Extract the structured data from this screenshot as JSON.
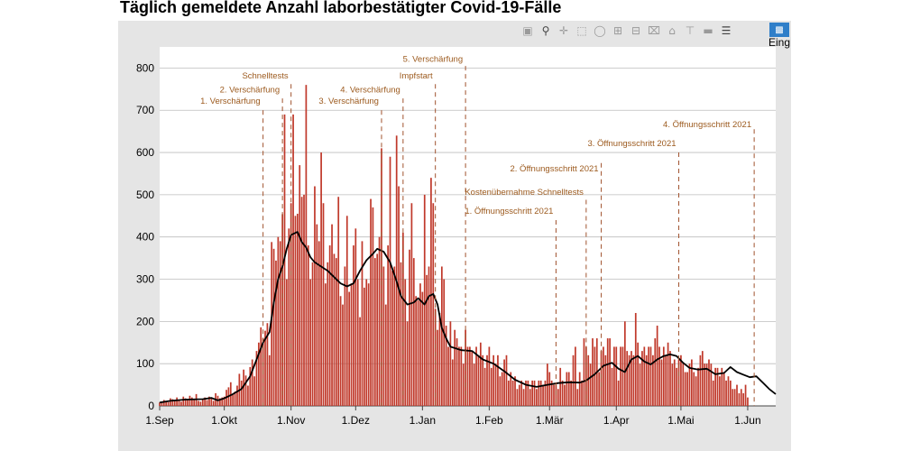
{
  "title": "Täglich gemeldete Anzahl laborbestätigter Covid-19-Fälle",
  "toolbar": {
    "icons": [
      "camera-icon",
      "zoom-icon",
      "pan-icon",
      "box-select-icon",
      "lasso-icon",
      "zoom-in-icon",
      "zoom-out-icon",
      "autoscale-icon",
      "home-icon",
      "spike-lines-icon",
      "hover-closest-icon",
      "hover-compare-icon"
    ],
    "legend_label": "Eing"
  },
  "chart_data": {
    "type": "bar",
    "title": "Täglich gemeldete Anzahl laborbestätigter Covid-19-Fälle",
    "x_start": "2020-09-01",
    "x_end": "2021-06-13",
    "ylim": [
      0,
      850
    ],
    "y_ticks": [
      0,
      100,
      200,
      300,
      400,
      500,
      600,
      700,
      800
    ],
    "x_ticks": [
      {
        "day": 0,
        "label": "1.Sep"
      },
      {
        "day": 30,
        "label": "1.Okt"
      },
      {
        "day": 61,
        "label": "1.Nov"
      },
      {
        "day": 91,
        "label": "1.Dez"
      },
      {
        "day": 122,
        "label": "1.Jan"
      },
      {
        "day": 153,
        "label": "1.Feb"
      },
      {
        "day": 181,
        "label": "1.Mär"
      },
      {
        "day": 212,
        "label": "1.Apr"
      },
      {
        "day": 242,
        "label": "1.Mai"
      },
      {
        "day": 273,
        "label": "1.Jun"
      }
    ],
    "grid": true,
    "bar_color": "#c0392b",
    "line_color": "#000000",
    "annotation_color": "#a0522d",
    "daily_cases": [
      8,
      10,
      14,
      12,
      9,
      18,
      16,
      12,
      20,
      14,
      10,
      22,
      18,
      15,
      24,
      20,
      16,
      28,
      12,
      10,
      16,
      20,
      14,
      22,
      18,
      12,
      30,
      24,
      18,
      20,
      22,
      38,
      44,
      56,
      28,
      34,
      48,
      76,
      60,
      86,
      72,
      48,
      92,
      110,
      70,
      130,
      150,
      186,
      160,
      178,
      196,
      120,
      388,
      372,
      344,
      400,
      390,
      454,
      690,
      300,
      420,
      480,
      690,
      450,
      455,
      570,
      495,
      500,
      760,
      380,
      300,
      340,
      520,
      430,
      390,
      600,
      480,
      290,
      340,
      380,
      430,
      360,
      350,
      495,
      260,
      240,
      330,
      450,
      270,
      290,
      380,
      420,
      300,
      210,
      390,
      280,
      300,
      290,
      490,
      470,
      350,
      360,
      400,
      610,
      330,
      240,
      380,
      590,
      320,
      330,
      640,
      520,
      340,
      410,
      300,
      200,
      370,
      480,
      350,
      260,
      250,
      290,
      270,
      500,
      310,
      330,
      540,
      480,
      230,
      180,
      220,
      330,
      300,
      190,
      140,
      200,
      110,
      180,
      160,
      140,
      140,
      100,
      180,
      140,
      140,
      130,
      100,
      140,
      120,
      150,
      120,
      90,
      120,
      140,
      90,
      120,
      100,
      120,
      70,
      80,
      110,
      120,
      60,
      80,
      60,
      70,
      40,
      50,
      60,
      40,
      60,
      60,
      40,
      60,
      60,
      40,
      60,
      60,
      50,
      60,
      100,
      80,
      60,
      50,
      50,
      40,
      90,
      60,
      50,
      80,
      80,
      60,
      120,
      140,
      40,
      80,
      60,
      160,
      140,
      120,
      100,
      160,
      140,
      160,
      80,
      130,
      140,
      120,
      160,
      160,
      90,
      140,
      140,
      60,
      140,
      140,
      200,
      130,
      120,
      130,
      120,
      220,
      150,
      100,
      130,
      140,
      120,
      140,
      140,
      120,
      160,
      190,
      140,
      110,
      140,
      120,
      150,
      130,
      100,
      110,
      90,
      110,
      120,
      100,
      80,
      80,
      100,
      110,
      80,
      70,
      90,
      120,
      130,
      100,
      100,
      110,
      100,
      60,
      90,
      90,
      70,
      90,
      80,
      60,
      70,
      60,
      40,
      40,
      50,
      30,
      40,
      30,
      50,
      20
    ],
    "moving_average": [
      {
        "day": 0,
        "value": 8
      },
      {
        "day": 5,
        "value": 12
      },
      {
        "day": 12,
        "value": 15
      },
      {
        "day": 20,
        "value": 16
      },
      {
        "day": 24,
        "value": 19
      },
      {
        "day": 27,
        "value": 13
      },
      {
        "day": 30,
        "value": 18
      },
      {
        "day": 34,
        "value": 28
      },
      {
        "day": 38,
        "value": 40
      },
      {
        "day": 42,
        "value": 70
      },
      {
        "day": 45,
        "value": 110
      },
      {
        "day": 48,
        "value": 150
      },
      {
        "day": 51,
        "value": 175
      },
      {
        "day": 53,
        "value": 245
      },
      {
        "day": 55,
        "value": 300
      },
      {
        "day": 57,
        "value": 330
      },
      {
        "day": 59,
        "value": 372
      },
      {
        "day": 61,
        "value": 405
      },
      {
        "day": 64,
        "value": 412
      },
      {
        "day": 66,
        "value": 388
      },
      {
        "day": 68,
        "value": 375
      },
      {
        "day": 70,
        "value": 352
      },
      {
        "day": 72,
        "value": 340
      },
      {
        "day": 75,
        "value": 330
      },
      {
        "day": 78,
        "value": 320
      },
      {
        "day": 81,
        "value": 305
      },
      {
        "day": 84,
        "value": 290
      },
      {
        "day": 87,
        "value": 283
      },
      {
        "day": 90,
        "value": 290
      },
      {
        "day": 93,
        "value": 320
      },
      {
        "day": 96,
        "value": 345
      },
      {
        "day": 99,
        "value": 360
      },
      {
        "day": 101,
        "value": 372
      },
      {
        "day": 104,
        "value": 365
      },
      {
        "day": 107,
        "value": 340
      },
      {
        "day": 110,
        "value": 295
      },
      {
        "day": 112,
        "value": 260
      },
      {
        "day": 115,
        "value": 240
      },
      {
        "day": 118,
        "value": 245
      },
      {
        "day": 120,
        "value": 255
      },
      {
        "day": 123,
        "value": 240
      },
      {
        "day": 125,
        "value": 260
      },
      {
        "day": 127,
        "value": 265
      },
      {
        "day": 129,
        "value": 240
      },
      {
        "day": 131,
        "value": 185
      },
      {
        "day": 133,
        "value": 160
      },
      {
        "day": 135,
        "value": 140
      },
      {
        "day": 140,
        "value": 132
      },
      {
        "day": 145,
        "value": 130
      },
      {
        "day": 150,
        "value": 110
      },
      {
        "day": 155,
        "value": 100
      },
      {
        "day": 160,
        "value": 82
      },
      {
        "day": 165,
        "value": 62
      },
      {
        "day": 170,
        "value": 50
      },
      {
        "day": 175,
        "value": 45
      },
      {
        "day": 180,
        "value": 50
      },
      {
        "day": 185,
        "value": 54
      },
      {
        "day": 190,
        "value": 56
      },
      {
        "day": 195,
        "value": 55
      },
      {
        "day": 198,
        "value": 60
      },
      {
        "day": 202,
        "value": 75
      },
      {
        "day": 206,
        "value": 95
      },
      {
        "day": 210,
        "value": 102
      },
      {
        "day": 213,
        "value": 88
      },
      {
        "day": 216,
        "value": 80
      },
      {
        "day": 219,
        "value": 110
      },
      {
        "day": 222,
        "value": 118
      },
      {
        "day": 225,
        "value": 105
      },
      {
        "day": 228,
        "value": 98
      },
      {
        "day": 231,
        "value": 110
      },
      {
        "day": 234,
        "value": 118
      },
      {
        "day": 237,
        "value": 122
      },
      {
        "day": 240,
        "value": 118
      },
      {
        "day": 243,
        "value": 102
      },
      {
        "day": 246,
        "value": 90
      },
      {
        "day": 250,
        "value": 86
      },
      {
        "day": 254,
        "value": 88
      },
      {
        "day": 258,
        "value": 75
      },
      {
        "day": 262,
        "value": 78
      },
      {
        "day": 265,
        "value": 92
      },
      {
        "day": 268,
        "value": 80
      },
      {
        "day": 271,
        "value": 74
      },
      {
        "day": 274,
        "value": 68
      },
      {
        "day": 277,
        "value": 70
      },
      {
        "day": 280,
        "value": 55
      },
      {
        "day": 283,
        "value": 40
      },
      {
        "day": 286,
        "value": 28
      }
    ],
    "annotations": [
      {
        "day": 48,
        "label": "1. Verschärfung",
        "label_y": 715,
        "top": 700
      },
      {
        "day": 57,
        "label": "2. Verschärfung",
        "label_y": 742,
        "top": 728
      },
      {
        "day": 61,
        "label": "Schnelltests",
        "label_y": 775,
        "top": 762
      },
      {
        "day": 103,
        "label": "3. Verschärfung",
        "label_y": 715,
        "top": 700
      },
      {
        "day": 113,
        "label": "4. Verschärfung",
        "label_y": 742,
        "top": 728
      },
      {
        "day": 128,
        "label": "Impfstart",
        "label_y": 775,
        "top": 762
      },
      {
        "day": 142,
        "label": "5. Verschärfung",
        "label_y": 815,
        "top": 805
      },
      {
        "day": 184,
        "label": "1. Öffnungsschritt 2021",
        "label_y": 455,
        "top": 440
      },
      {
        "day": 198,
        "label": "Kostenübernahme Schnelltests",
        "label_y": 500,
        "top": 488
      },
      {
        "day": 205,
        "label": "2. Öffnungsschritt 2021",
        "label_y": 555,
        "top": 575
      },
      {
        "day": 241,
        "label": "3. Öffnungsschritt 2021",
        "label_y": 615,
        "top": 600
      },
      {
        "day": 276,
        "label": "4. Öffnungsschritt 2021",
        "label_y": 660,
        "top": 655
      }
    ]
  }
}
